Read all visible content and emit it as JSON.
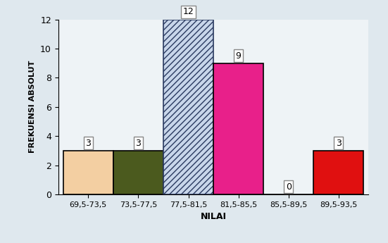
{
  "chart_data": {
    "type": "bar",
    "categories": [
      "69,5-73,5",
      "73,5-77,5",
      "77,5-81,5",
      "81,5-85,5",
      "85,5-89,5",
      "89,5-93,5"
    ],
    "values": [
      3,
      3,
      12,
      9,
      0,
      3
    ],
    "colors": [
      "#f3cfa2",
      "#4b5a1e",
      "#c8d6ea",
      "#e8208a",
      "#1a8a3a",
      "#e01010"
    ],
    "x_label": "NILAI",
    "y_label": "FREKUENSI ABSOLUT",
    "ylim": [
      0,
      12
    ],
    "yticks": [
      0,
      2,
      4,
      6,
      8,
      10,
      12
    ],
    "grid": false,
    "data_labels": true
  }
}
